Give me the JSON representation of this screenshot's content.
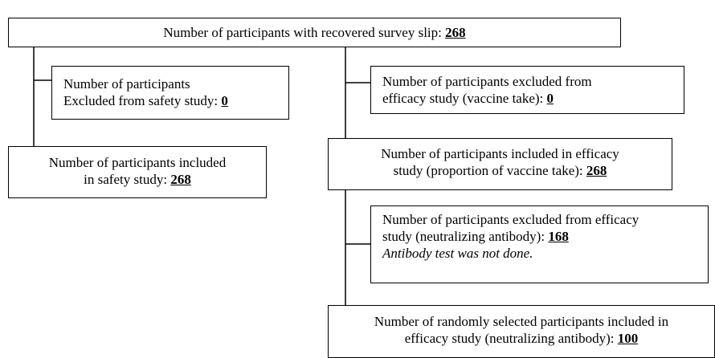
{
  "nodes": [
    {
      "lines": [
        "Number of participants with recovered survey slip: "
      ],
      "count": 268
    },
    {
      "lines": [
        "Number of participants",
        "Excluded from safety study: "
      ],
      "count": 0
    },
    {
      "lines": [
        "Number of participants included",
        "in safety study: "
      ],
      "count": 268
    },
    {
      "lines": [
        "Number of participants excluded from",
        "efficacy study (vaccine take): "
      ],
      "count": 0
    },
    {
      "lines": [
        "Number of participants included in efficacy",
        "study (proportion of vaccine take): "
      ],
      "count": 268
    },
    {
      "lines": [
        "Number of participants excluded from efficacy",
        "study (neutralizing antibody): "
      ],
      "count": 168,
      "note": "Antibody test was not done."
    },
    {
      "lines": [
        "Number of randomly selected participants included in",
        "efficacy study (neutralizing antibody): "
      ],
      "count": 100
    }
  ]
}
